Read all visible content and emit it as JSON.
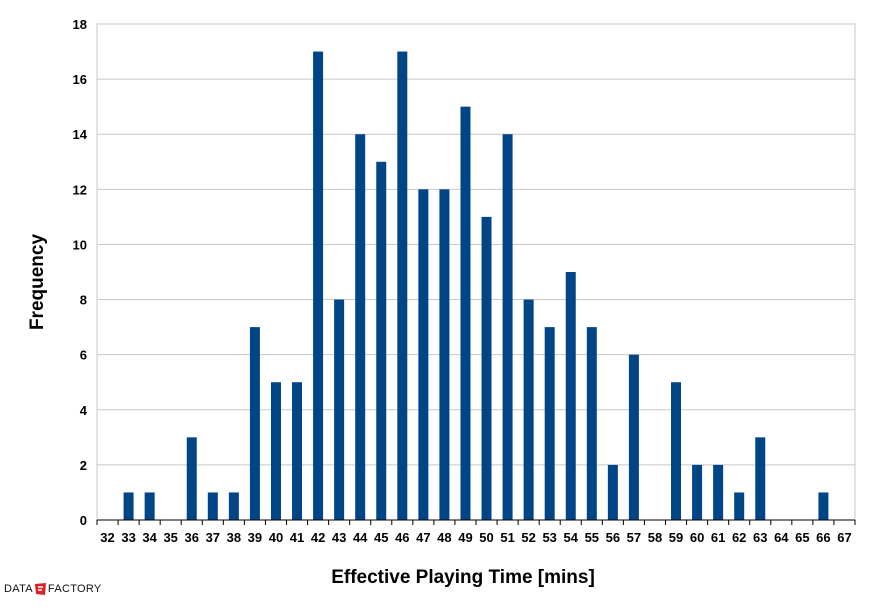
{
  "chart_data": {
    "type": "bar",
    "xlabel": "Effective Playing Time [mins]",
    "ylabel": "Frequency",
    "ylim": [
      0,
      18
    ],
    "yticks": [
      0,
      2,
      4,
      6,
      8,
      10,
      12,
      14,
      16,
      18
    ],
    "grid": true,
    "legend": "none",
    "bar_color": "#004687",
    "categories": [
      "32",
      "33",
      "34",
      "35",
      "36",
      "37",
      "38",
      "39",
      "40",
      "41",
      "42",
      "43",
      "44",
      "45",
      "46",
      "47",
      "48",
      "49",
      "50",
      "51",
      "52",
      "53",
      "54",
      "55",
      "56",
      "57",
      "58",
      "59",
      "60",
      "61",
      "62",
      "63",
      "64",
      "65",
      "66",
      "67"
    ],
    "values": [
      0,
      1,
      1,
      0,
      3,
      1,
      1,
      7,
      5,
      5,
      17,
      8,
      14,
      13,
      17,
      12,
      12,
      15,
      11,
      14,
      8,
      7,
      9,
      7,
      2,
      6,
      0,
      5,
      2,
      2,
      1,
      3,
      0,
      0,
      1,
      0
    ]
  },
  "brand": {
    "left": "DATA",
    "right": "FACTORY",
    "accent_color": "#d9232a"
  }
}
